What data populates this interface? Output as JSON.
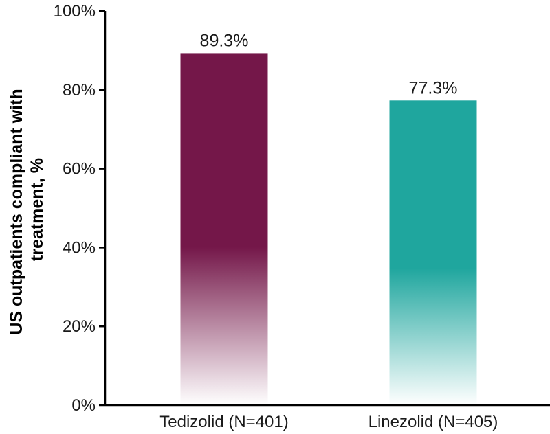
{
  "chart_data": {
    "type": "bar",
    "categories": [
      "Tedizolid (N=401)",
      "Linezolid (N=405)"
    ],
    "values": [
      89.3,
      77.3
    ],
    "data_labels": [
      "89.3%",
      "77.3%"
    ],
    "ylabel_lines": [
      "US outpatients compliant with",
      "treatment, %"
    ],
    "ylim": [
      0,
      100
    ],
    "yticks": [
      0,
      20,
      40,
      60,
      80,
      100
    ],
    "ytick_labels": [
      "0%",
      "20%",
      "40%",
      "60%",
      "80%",
      "100%"
    ],
    "grid": false,
    "legend": "none",
    "colors": [
      "#741749",
      "#1fa69e"
    ],
    "fill_style": "gradient-fade-to-bottom"
  }
}
